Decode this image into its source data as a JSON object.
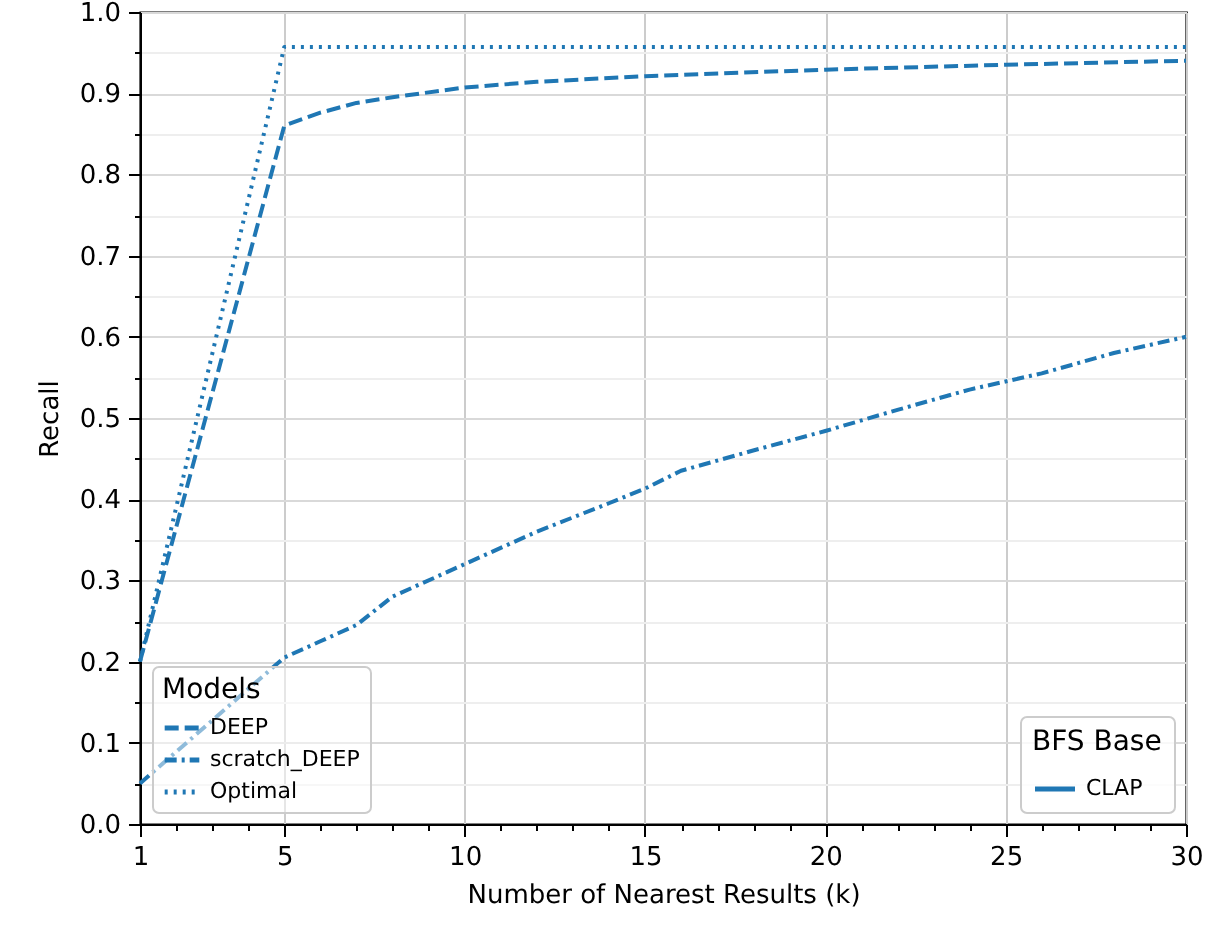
{
  "chart_data": {
    "type": "line",
    "xlabel": "Number of Nearest Results (k)",
    "ylabel": "Recall",
    "legend_title": "Models",
    "legend": "bottom left",
    "grid": true,
    "annotations": [
      "BFS Base",
      "CLAP"
    ],
    "xlim": [
      1,
      30
    ],
    "xticks": [
      1,
      {
        "value": 2,
        "label": null
      },
      {
        "value": 3,
        "label": null
      },
      {
        "value": 4,
        "label": null
      },
      5,
      {
        "value": 6,
        "label": null
      },
      {
        "value": 7,
        "label": null
      },
      {
        "value": 8,
        "label": null
      },
      {
        "value": 9,
        "label": null
      },
      10,
      {
        "value": 11,
        "label": null
      },
      {
        "value": 12,
        "label": null
      },
      {
        "value": 13,
        "label": null
      },
      {
        "value": 14,
        "label": null
      },
      15,
      {
        "value": 16,
        "label": null
      },
      {
        "value": 17,
        "label": null
      },
      {
        "value": 18,
        "label": null
      },
      {
        "value": 19,
        "label": null
      },
      20,
      {
        "value": 21,
        "label": null
      },
      {
        "value": 22,
        "label": null
      },
      {
        "value": 23,
        "label": null
      },
      {
        "value": 24,
        "label": null
      },
      25,
      {
        "value": 26,
        "label": null
      },
      {
        "value": 27,
        "label": null
      },
      {
        "value": 28,
        "label": null
      },
      {
        "value": 29,
        "label": null
      },
      30
    ],
    "ylim": [
      0,
      1
    ],
    "yticks": [
      {
        "value": 0,
        "label": "0.0"
      },
      {
        "value": 0.05,
        "label": null
      },
      {
        "value": 0.1,
        "label": "0.1"
      },
      {
        "value": 0.15,
        "label": null
      },
      {
        "value": 0.2,
        "label": "0.2"
      },
      {
        "value": 0.25,
        "label": null
      },
      {
        "value": 0.3,
        "label": "0.3"
      },
      {
        "value": 0.35,
        "label": null
      },
      {
        "value": 0.4,
        "label": "0.4"
      },
      {
        "value": 0.45,
        "label": null
      },
      {
        "value": 0.5,
        "label": "0.5"
      },
      {
        "value": 0.55,
        "label": null
      },
      {
        "value": 0.6,
        "label": "0.6"
      },
      {
        "value": 0.65,
        "label": null
      },
      {
        "value": 0.7,
        "label": "0.7"
      },
      {
        "value": 0.75,
        "label": null
      },
      {
        "value": 0.8,
        "label": "0.8"
      },
      {
        "value": 0.85,
        "label": null
      },
      {
        "value": 0.9,
        "label": "0.9"
      },
      {
        "value": 0.95,
        "label": null
      },
      {
        "value": 1,
        "label": "1.0"
      }
    ],
    "series": [
      {
        "name": "DEEP",
        "color": "#1f77b4",
        "line_style": "dashed",
        "x": [
          1,
          5,
          6,
          7,
          8,
          10,
          12,
          15,
          20,
          25,
          30
        ],
        "values": [
          0.2,
          0.86,
          0.876,
          0.888,
          0.895,
          0.907,
          0.914,
          0.921,
          0.929,
          0.935,
          0.94
        ]
      },
      {
        "name": "scratch_DEEP",
        "color": "#1f77b4",
        "line_style": "dashdot",
        "x": [
          1,
          5,
          6,
          7,
          8,
          10,
          12,
          14,
          15,
          16,
          18,
          20,
          22,
          24,
          26,
          28,
          30
        ],
        "values": [
          0.05,
          0.205,
          0.225,
          0.245,
          0.28,
          0.32,
          0.36,
          0.395,
          0.413,
          0.435,
          0.46,
          0.484,
          0.51,
          0.535,
          0.555,
          0.58,
          0.6
        ]
      },
      {
        "name": "Optimal",
        "color": "#1f77b4",
        "line_style": "dotted",
        "x": [
          1,
          5,
          30
        ],
        "values": [
          0.2,
          0.957,
          0.957
        ]
      }
    ]
  }
}
